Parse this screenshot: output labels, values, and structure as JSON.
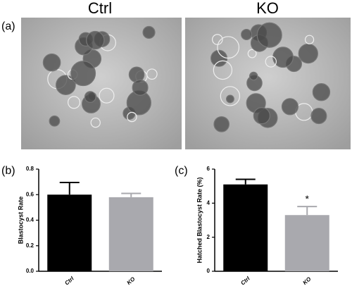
{
  "figure": {
    "panel_label": "(a)",
    "images": [
      {
        "title": "Ctrl"
      },
      {
        "title": "KO"
      }
    ]
  },
  "chart_data": [
    {
      "type": "bar",
      "label": "(b)",
      "ylabel": "Blastocyst Rate",
      "categories": [
        "Ctrl",
        "KO"
      ],
      "values": [
        0.6,
        0.58
      ],
      "errors": [
        0.095,
        0.03
      ],
      "colors": [
        "#000000",
        "#a9a9ae"
      ],
      "ylim": [
        0,
        0.8
      ],
      "yticks": [
        {
          "value": 0,
          "label": "0.0"
        },
        0.2,
        0.4,
        0.6,
        0.8
      ]
    },
    {
      "type": "bar",
      "label": "(c)",
      "ylabel": "Hatched Blastocyst Rate (%)",
      "categories": [
        "Ctrl",
        "KO"
      ],
      "values": [
        5.1,
        3.3
      ],
      "errors": [
        0.3,
        0.5
      ],
      "colors": [
        "#000000",
        "#a9a9ae"
      ],
      "ylim": [
        0,
        6
      ],
      "yticks": [
        0,
        2,
        4,
        6
      ],
      "annotations": [
        {
          "text": "*",
          "x": "KO"
        }
      ]
    }
  ]
}
